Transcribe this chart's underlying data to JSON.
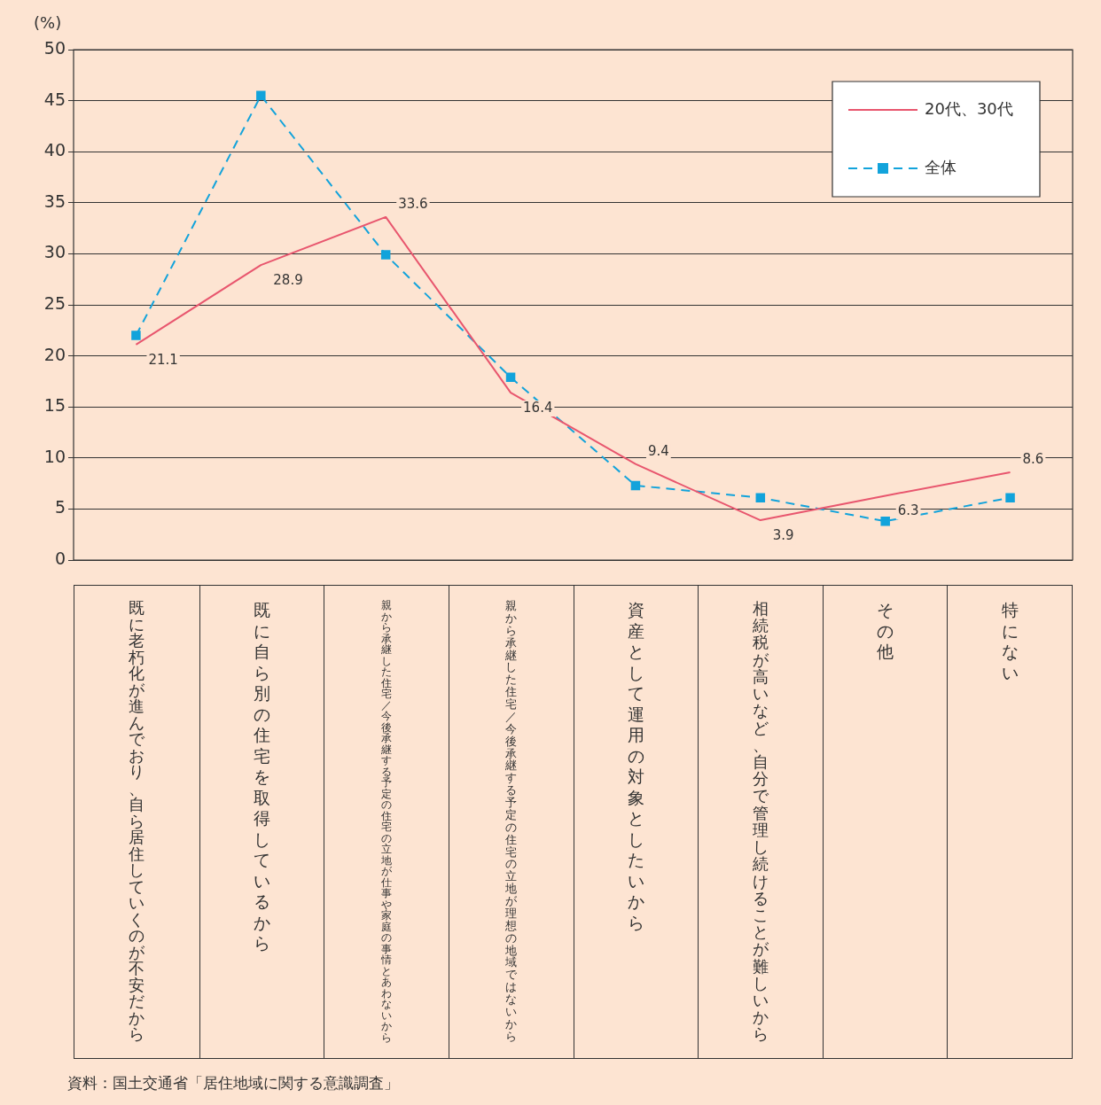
{
  "chart_data": {
    "type": "line",
    "ylabel": "(%)",
    "categories": [
      "既に老朽化が進んでおり、自ら居住していくのが不安だから",
      "既に自ら別の住宅を取得しているから",
      "親から承継した住宅／今後承継する予定の住宅の立地が仕事や家庭の事情とあわないから",
      "親から承継した住宅／今後承継する予定の住宅の立地が理想の地域ではないから",
      "資産として運用の対象としたいから",
      "相続税が高いなど、自分で管理し続けることが難しいから",
      "その他",
      "特にない"
    ],
    "series": [
      {
        "name": "20代、30代",
        "color": "#e8566e",
        "marker": "none",
        "line_style": "solid",
        "values": [
          21.1,
          28.9,
          33.6,
          16.4,
          9.4,
          3.9,
          6.3,
          8.6
        ],
        "value_labels": [
          "21.1",
          "28.9",
          "33.6",
          "16.4",
          "9.4",
          "3.9",
          "6.3",
          "8.6"
        ]
      },
      {
        "name": "全体",
        "color": "#12a3db",
        "marker": "square",
        "line_style": "dashed",
        "values": [
          22.0,
          45.5,
          29.9,
          17.9,
          7.3,
          6.1,
          3.8,
          6.1
        ]
      }
    ],
    "ylim": [
      0,
      50
    ],
    "yticks": [
      0,
      5,
      10,
      15,
      20,
      25,
      30,
      35,
      40,
      45,
      50
    ],
    "grid": "y",
    "legend": "top right",
    "annotations": [
      "資料：国土交通省「居住地域に関する意識調査」"
    ]
  }
}
